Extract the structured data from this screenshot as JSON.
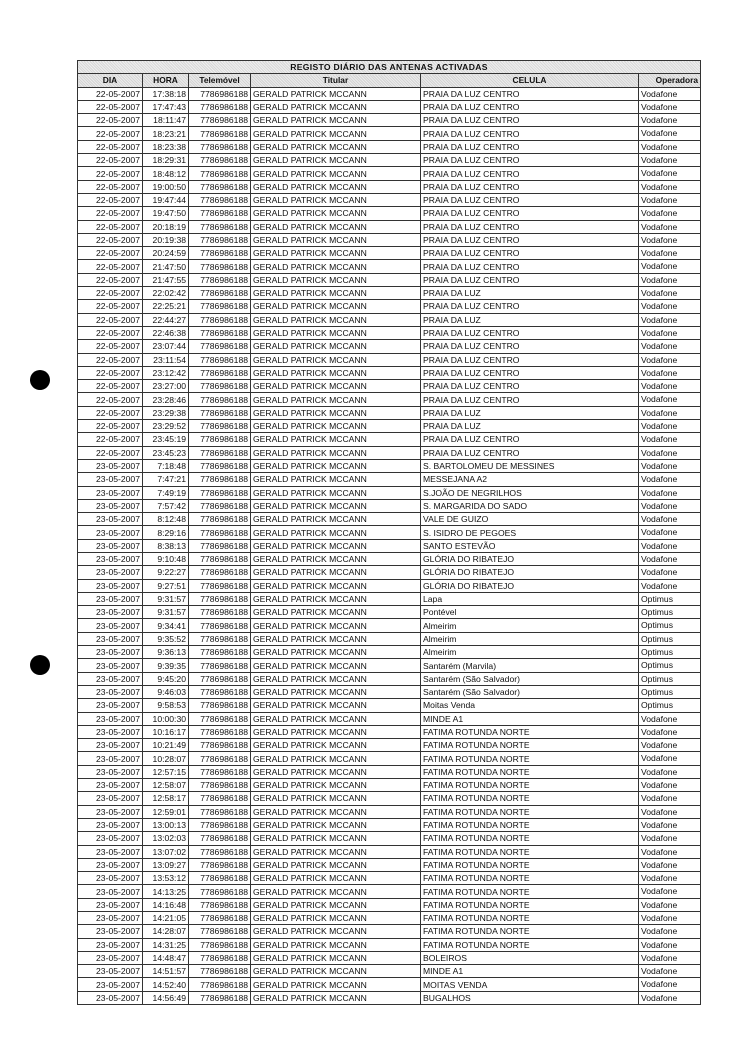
{
  "document": {
    "title": "REGISTO DIÁRIO DAS ANTENAS ACTIVADAS",
    "columns": [
      "DIA",
      "HORA",
      "Telemóvel",
      "Titular",
      "CELULA",
      "Operadora"
    ],
    "rows": [
      [
        "22-05-2007",
        "17:38:18",
        "7786986188",
        "GERALD PATRICK MCCANN",
        "PRAIA DA LUZ CENTRO",
        "Vodafone"
      ],
      [
        "22-05-2007",
        "17:47:43",
        "7786986188",
        "GERALD PATRICK MCCANN",
        "PRAIA DA LUZ CENTRO",
        "Vodafone"
      ],
      [
        "22-05-2007",
        "18:11:47",
        "7786986188",
        "GERALD PATRICK MCCANN",
        "PRAIA DA LUZ CENTRO",
        "Vodafone"
      ],
      [
        "22-05-2007",
        "18:23:21",
        "7786986188",
        "GERALD PATRICK MCCANN",
        "PRAIA DA LUZ CENTRO",
        "Vodafone"
      ],
      [
        "22-05-2007",
        "18:23:38",
        "7786986188",
        "GERALD PATRICK MCCANN",
        "PRAIA DA LUZ CENTRO",
        "Vodafone"
      ],
      [
        "22-05-2007",
        "18:29:31",
        "7786986188",
        "GERALD PATRICK MCCANN",
        "PRAIA DA LUZ CENTRO",
        "Vodafone"
      ],
      [
        "22-05-2007",
        "18:48:12",
        "7786986188",
        "GERALD PATRICK MCCANN",
        "PRAIA DA LUZ CENTRO",
        "Vodafone"
      ],
      [
        "22-05-2007",
        "19:00:50",
        "7786986188",
        "GERALD PATRICK MCCANN",
        "PRAIA DA LUZ CENTRO",
        "Vodafone"
      ],
      [
        "22-05-2007",
        "19:47:44",
        "7786986188",
        "GERALD PATRICK MCCANN",
        "PRAIA DA LUZ CENTRO",
        "Vodafone"
      ],
      [
        "22-05-2007",
        "19:47:50",
        "7786986188",
        "GERALD PATRICK MCCANN",
        "PRAIA DA LUZ CENTRO",
        "Vodafone"
      ],
      [
        "22-05-2007",
        "20:18:19",
        "7786986188",
        "GERALD PATRICK MCCANN",
        "PRAIA DA LUZ CENTRO",
        "Vodafone"
      ],
      [
        "22-05-2007",
        "20:19:38",
        "7786986188",
        "GERALD PATRICK MCCANN",
        "PRAIA DA LUZ CENTRO",
        "Vodafone"
      ],
      [
        "22-05-2007",
        "20:24:59",
        "7786986188",
        "GERALD PATRICK MCCANN",
        "PRAIA DA LUZ CENTRO",
        "Vodafone"
      ],
      [
        "22-05-2007",
        "21:47:50",
        "7786986188",
        "GERALD PATRICK MCCANN",
        "PRAIA DA LUZ CENTRO",
        "Vodafone"
      ],
      [
        "22-05-2007",
        "21:47:55",
        "7786986188",
        "GERALD PATRICK MCCANN",
        "PRAIA DA LUZ CENTRO",
        "Vodafone"
      ],
      [
        "22-05-2007",
        "22:02:42",
        "7786986188",
        "GERALD PATRICK MCCANN",
        "PRAIA DA LUZ",
        "Vodafone"
      ],
      [
        "22-05-2007",
        "22:25:21",
        "7786986188",
        "GERALD PATRICK MCCANN",
        "PRAIA DA LUZ CENTRO",
        "Vodafone"
      ],
      [
        "22-05-2007",
        "22:44:27",
        "7786986188",
        "GERALD PATRICK MCCANN",
        "PRAIA DA LUZ",
        "Vodafone"
      ],
      [
        "22-05-2007",
        "22:46:38",
        "7786986188",
        "GERALD PATRICK MCCANN",
        "PRAIA DA LUZ CENTRO",
        "Vodafone"
      ],
      [
        "22-05-2007",
        "23:07:44",
        "7786986188",
        "GERALD PATRICK MCCANN",
        "PRAIA DA LUZ CENTRO",
        "Vodafone"
      ],
      [
        "22-05-2007",
        "23:11:54",
        "7786986188",
        "GERALD PATRICK MCCANN",
        "PRAIA DA LUZ CENTRO",
        "Vodafone"
      ],
      [
        "22-05-2007",
        "23:12:42",
        "7786986188",
        "GERALD PATRICK MCCANN",
        "PRAIA DA LUZ CENTRO",
        "Vodafone"
      ],
      [
        "22-05-2007",
        "23:27:00",
        "7786986188",
        "GERALD PATRICK MCCANN",
        "PRAIA DA LUZ CENTRO",
        "Vodafone"
      ],
      [
        "22-05-2007",
        "23:28:46",
        "7786986188",
        "GERALD PATRICK MCCANN",
        "PRAIA DA LUZ CENTRO",
        "Vodafone"
      ],
      [
        "22-05-2007",
        "23:29:38",
        "7786986188",
        "GERALD PATRICK MCCANN",
        "PRAIA DA LUZ",
        "Vodafone"
      ],
      [
        "22-05-2007",
        "23:29:52",
        "7786986188",
        "GERALD PATRICK MCCANN",
        "PRAIA DA LUZ",
        "Vodafone"
      ],
      [
        "22-05-2007",
        "23:45:19",
        "7786986188",
        "GERALD PATRICK MCCANN",
        "PRAIA DA LUZ CENTRO",
        "Vodafone"
      ],
      [
        "22-05-2007",
        "23:45:23",
        "7786986188",
        "GERALD PATRICK MCCANN",
        "PRAIA DA LUZ CENTRO",
        "Vodafone"
      ],
      [
        "23-05-2007",
        "7:18:48",
        "7786986188",
        "GERALD PATRICK MCCANN",
        "S. BARTOLOMEU DE MESSINES",
        "Vodafone"
      ],
      [
        "23-05-2007",
        "7:47:21",
        "7786986188",
        "GERALD PATRICK MCCANN",
        "MESSEJANA A2",
        "Vodafone"
      ],
      [
        "23-05-2007",
        "7:49:19",
        "7786986188",
        "GERALD PATRICK MCCANN",
        "S.JOÃO DE NEGRILHOS",
        "Vodafone"
      ],
      [
        "23-05-2007",
        "7:57:42",
        "7786986188",
        "GERALD PATRICK MCCANN",
        "S. MARGARIDA DO SADO",
        "Vodafone"
      ],
      [
        "23-05-2007",
        "8:12:48",
        "7786986188",
        "GERALD PATRICK MCCANN",
        "VALE DE GUIZO",
        "Vodafone"
      ],
      [
        "23-05-2007",
        "8:29:16",
        "7786986188",
        "GERALD PATRICK MCCANN",
        "S. ISIDRO DE PEGOES",
        "Vodafone"
      ],
      [
        "23-05-2007",
        "8:38:13",
        "7786986188",
        "GERALD PATRICK MCCANN",
        "SANTO ESTEVÃO",
        "Vodafone"
      ],
      [
        "23-05-2007",
        "9:10:48",
        "7786986188",
        "GERALD PATRICK MCCANN",
        "GLÓRIA DO RIBATEJO",
        "Vodafone"
      ],
      [
        "23-05-2007",
        "9:22:27",
        "7786986188",
        "GERALD PATRICK MCCANN",
        "GLÓRIA DO RIBATEJO",
        "Vodafone"
      ],
      [
        "23-05-2007",
        "9:27:51",
        "7786986188",
        "GERALD PATRICK MCCANN",
        "GLÓRIA DO RIBATEJO",
        "Vodafone"
      ],
      [
        "23-05-2007",
        "9:31:57",
        "7786986188",
        "GERALD PATRICK MCCANN",
        "Lapa",
        "Optimus"
      ],
      [
        "23-05-2007",
        "9:31:57",
        "7786986188",
        "GERALD PATRICK MCCANN",
        "Pontével",
        "Optimus"
      ],
      [
        "23-05-2007",
        "9:34:41",
        "7786986188",
        "GERALD PATRICK MCCANN",
        "Almeirim",
        "Optimus"
      ],
      [
        "23-05-2007",
        "9:35:52",
        "7786986188",
        "GERALD PATRICK MCCANN",
        "Almeirim",
        "Optimus"
      ],
      [
        "23-05-2007",
        "9:36:13",
        "7786986188",
        "GERALD PATRICK MCCANN",
        "Almeirim",
        "Optimus"
      ],
      [
        "23-05-2007",
        "9:39:35",
        "7786986188",
        "GERALD PATRICK MCCANN",
        "Santarém (Marvila)",
        "Optimus"
      ],
      [
        "23-05-2007",
        "9:45:20",
        "7786986188",
        "GERALD PATRICK MCCANN",
        "Santarém (São Salvador)",
        "Optimus"
      ],
      [
        "23-05-2007",
        "9:46:03",
        "7786986188",
        "GERALD PATRICK MCCANN",
        "Santarém (São Salvador)",
        "Optimus"
      ],
      [
        "23-05-2007",
        "9:58:53",
        "7786986188",
        "GERALD PATRICK MCCANN",
        "Moitas Venda",
        "Optimus"
      ],
      [
        "23-05-2007",
        "10:00:30",
        "7786986188",
        "GERALD PATRICK MCCANN",
        "MINDE A1",
        "Vodafone"
      ],
      [
        "23-05-2007",
        "10:16:17",
        "7786986188",
        "GERALD PATRICK MCCANN",
        "FATIMA ROTUNDA NORTE",
        "Vodafone"
      ],
      [
        "23-05-2007",
        "10:21:49",
        "7786986188",
        "GERALD PATRICK MCCANN",
        "FATIMA ROTUNDA NORTE",
        "Vodafone"
      ],
      [
        "23-05-2007",
        "10:28:07",
        "7786986188",
        "GERALD PATRICK MCCANN",
        "FATIMA ROTUNDA NORTE",
        "Vodafone"
      ],
      [
        "23-05-2007",
        "12:57:15",
        "7786986188",
        "GERALD PATRICK MCCANN",
        "FATIMA ROTUNDA NORTE",
        "Vodafone"
      ],
      [
        "23-05-2007",
        "12:58:07",
        "7786986188",
        "GERALD PATRICK MCCANN",
        "FATIMA ROTUNDA NORTE",
        "Vodafone"
      ],
      [
        "23-05-2007",
        "12:58:17",
        "7786986188",
        "GERALD PATRICK MCCANN",
        "FATIMA ROTUNDA NORTE",
        "Vodafone"
      ],
      [
        "23-05-2007",
        "12:59:01",
        "7786986188",
        "GERALD PATRICK MCCANN",
        "FATIMA ROTUNDA NORTE",
        "Vodafone"
      ],
      [
        "23-05-2007",
        "13:00:13",
        "7786986188",
        "GERALD PATRICK MCCANN",
        "FATIMA ROTUNDA NORTE",
        "Vodafone"
      ],
      [
        "23-05-2007",
        "13:02:03",
        "7786986188",
        "GERALD PATRICK MCCANN",
        "FATIMA ROTUNDA NORTE",
        "Vodafone"
      ],
      [
        "23-05-2007",
        "13:07:02",
        "7786986188",
        "GERALD PATRICK MCCANN",
        "FATIMA ROTUNDA NORTE",
        "Vodafone"
      ],
      [
        "23-05-2007",
        "13:09:27",
        "7786986188",
        "GERALD PATRICK MCCANN",
        "FATIMA ROTUNDA NORTE",
        "Vodafone"
      ],
      [
        "23-05-2007",
        "13:53:12",
        "7786986188",
        "GERALD PATRICK MCCANN",
        "FATIMA ROTUNDA NORTE",
        "Vodafone"
      ],
      [
        "23-05-2007",
        "14:13:25",
        "7786986188",
        "GERALD PATRICK MCCANN",
        "FATIMA ROTUNDA NORTE",
        "Vodafone"
      ],
      [
        "23-05-2007",
        "14:16:48",
        "7786986188",
        "GERALD PATRICK MCCANN",
        "FATIMA ROTUNDA NORTE",
        "Vodafone"
      ],
      [
        "23-05-2007",
        "14:21:05",
        "7786986188",
        "GERALD PATRICK MCCANN",
        "FATIMA ROTUNDA NORTE",
        "Vodafone"
      ],
      [
        "23-05-2007",
        "14:28:07",
        "7786986188",
        "GERALD PATRICK MCCANN",
        "FATIMA ROTUNDA NORTE",
        "Vodafone"
      ],
      [
        "23-05-2007",
        "14:31:25",
        "7786986188",
        "GERALD PATRICK MCCANN",
        "FATIMA ROTUNDA NORTE",
        "Vodafone"
      ],
      [
        "23-05-2007",
        "14:48:47",
        "7786986188",
        "GERALD PATRICK MCCANN",
        "BOLEIROS",
        "Vodafone"
      ],
      [
        "23-05-2007",
        "14:51:57",
        "7786986188",
        "GERALD PATRICK MCCANN",
        "MINDE A1",
        "Vodafone"
      ],
      [
        "23-05-2007",
        "14:52:40",
        "7786986188",
        "GERALD PATRICK MCCANN",
        "MOITAS VENDA",
        "Vodafone"
      ],
      [
        "23-05-2007",
        "14:56:49",
        "7786986188",
        "GERALD PATRICK MCCANN",
        "BUGALHOS",
        "Vodafone"
      ]
    ]
  }
}
